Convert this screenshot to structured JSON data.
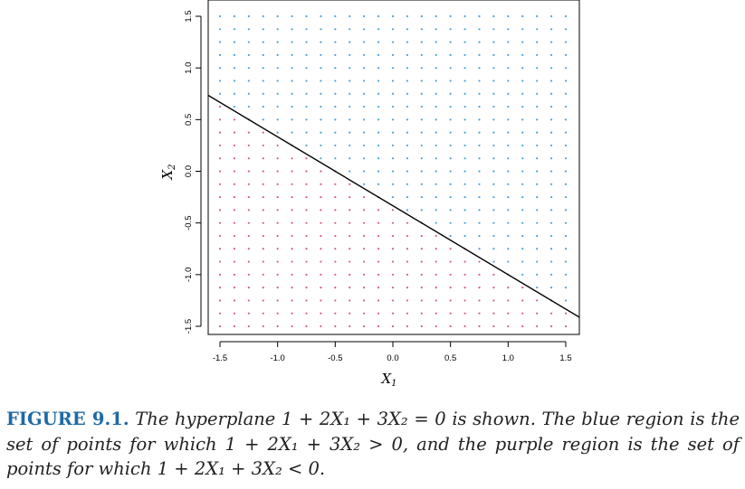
{
  "chart_data": {
    "type": "scatter",
    "xlabel": "X1",
    "ylabel": "X2",
    "xlim": [
      -1.5,
      1.5
    ],
    "ylim": [
      -1.5,
      1.5
    ],
    "x_ticks": [
      "-1.5",
      "-1.0",
      "-0.5",
      "0.0",
      "0.5",
      "1.0",
      "1.5"
    ],
    "y_ticks": [
      "-1.5",
      "-1.0",
      "-0.5",
      "0.0",
      "0.5",
      "1.0",
      "1.5"
    ],
    "grid_points_per_axis": 25,
    "hyperplane": {
      "intercept": 1,
      "coef_x1": 2,
      "coef_x2": 3
    },
    "series": [
      {
        "region": "positive",
        "color": "#4aa3d8"
      },
      {
        "region": "negative",
        "color": "#d65f7a"
      }
    ],
    "line_color": "#000000"
  },
  "caption": {
    "label": "FIGURE 9.1.",
    "text": "The hyperplane 1 + 2X₁ + 3X₂ = 0 is shown. The blue region is the set of points for which 1 + 2X₁ + 3X₂ > 0, and the purple region is the set of points for which 1 + 2X₁ + 3X₂ < 0."
  }
}
